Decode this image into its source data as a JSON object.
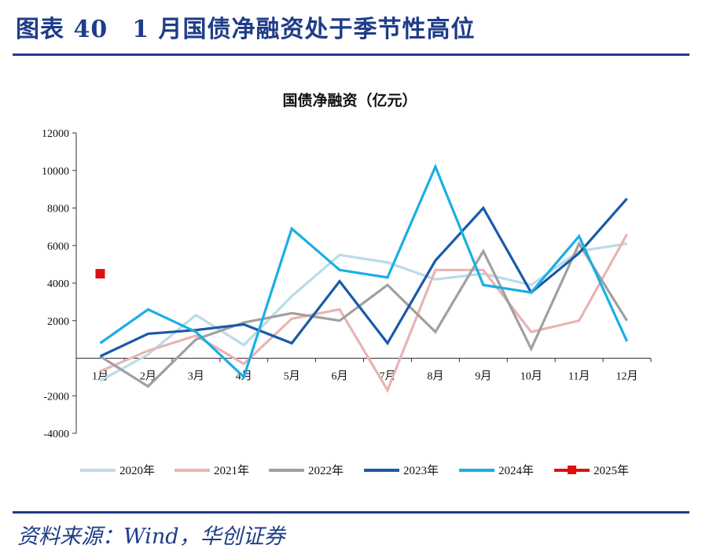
{
  "figure": {
    "title": "图表 40　1 月国债净融资处于季节性高位",
    "source": "资料来源：Wind，华创证券"
  },
  "chart_data": {
    "type": "line",
    "title": "国债净融资（亿元）",
    "xlabel": "",
    "ylabel": "",
    "categories": [
      "1月",
      "2月",
      "3月",
      "4月",
      "5月",
      "6月",
      "7月",
      "8月",
      "9月",
      "10月",
      "11月",
      "12月"
    ],
    "ylim": [
      -4000,
      12000
    ],
    "yticks": [
      -4000,
      -2000,
      2000,
      4000,
      6000,
      8000,
      10000,
      12000
    ],
    "grid": false,
    "legend_position": "bottom",
    "series": [
      {
        "name": "2020年",
        "color": "#b9dce8",
        "marker": "line",
        "values": [
          -1200,
          200,
          2300,
          700,
          3300,
          5500,
          5100,
          4200,
          4500,
          3900,
          5700,
          6100
        ]
      },
      {
        "name": "2021年",
        "color": "#e8b4b4",
        "marker": "line",
        "values": [
          -700,
          400,
          1200,
          -300,
          2100,
          2600,
          -1700,
          4700,
          4700,
          1400,
          2000,
          6600
        ]
      },
      {
        "name": "2022年",
        "color": "#a0a0a0",
        "marker": "line",
        "values": [
          100,
          -1500,
          1000,
          1900,
          2400,
          2000,
          3900,
          1400,
          5700,
          500,
          6100,
          2000
        ]
      },
      {
        "name": "2023年",
        "color": "#1a5aa8",
        "marker": "line",
        "values": [
          100,
          1300,
          1500,
          1800,
          800,
          4100,
          800,
          5200,
          8000,
          3500,
          5600,
          8500
        ]
      },
      {
        "name": "2024年",
        "color": "#1aaee5",
        "marker": "line",
        "values": [
          800,
          2600,
          1400,
          -1000,
          6900,
          4700,
          4300,
          10200,
          3900,
          3500,
          6500,
          900
        ]
      },
      {
        "name": "2025年",
        "color": "#e01010",
        "marker": "square",
        "values": [
          4500,
          null,
          null,
          null,
          null,
          null,
          null,
          null,
          null,
          null,
          null,
          null
        ]
      }
    ]
  }
}
